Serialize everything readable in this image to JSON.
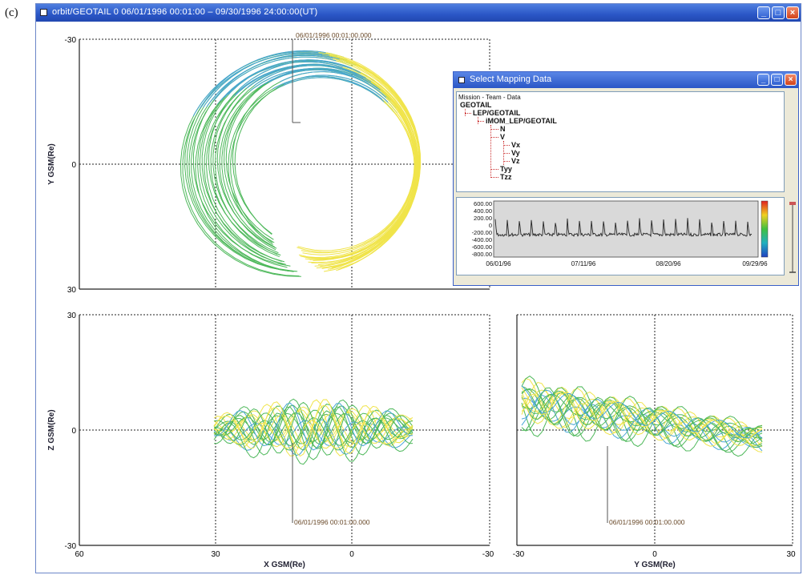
{
  "caption": "(c)",
  "window": {
    "title": "orbit/GEOTAIL 0 06/01/1996 00:01:00 – 09/30/1996 24:00:00(UT)",
    "buttons": {
      "minimize": "_",
      "maximize": "□",
      "close": "×"
    }
  },
  "plots": {
    "xy": {
      "ylabel": "Y GSM(Re)",
      "yticks": [
        "-30",
        "0",
        "30"
      ],
      "annotation": "06/01/1996 00:01:00.000"
    },
    "xz": {
      "ylabel": "Z GSM(Re)",
      "xlabel": "X GSM(Re)",
      "yticks": [
        "30",
        "0",
        "-30"
      ],
      "xticks": [
        "60",
        "30",
        "0",
        "-30"
      ],
      "annotation": "06/01/1996 00:01:00.000"
    },
    "yz": {
      "xlabel": "Y GSM(Re)",
      "xticks": [
        "-30",
        "0",
        "30"
      ],
      "annotation": "06/01/1996 00:01:00.000"
    }
  },
  "colors": {
    "trace_main": "#4db85a",
    "trace_high": "#f0e44a",
    "trace_low": "#4aa6d6",
    "trace_spike": "#e0382a",
    "window_blue": "#2a56c6"
  },
  "popup": {
    "title": "Select Mapping Data",
    "tree_header": "Mission - Team - Data",
    "tree": {
      "mission": "GEOTAIL",
      "team": "LEP/GEOTAIL",
      "dataset": "iMOM_LEP/GEOTAIL",
      "items": [
        "N",
        "V",
        "Tyy",
        "Tzz"
      ],
      "sub_items": [
        "Vx",
        "Vy",
        "Vz"
      ]
    },
    "mini_chart": {
      "yticks": [
        "600.00",
        "400.00",
        "200.00",
        "0",
        "-200.00",
        "-400.00",
        "-600.00",
        "-800.00"
      ],
      "xticks": [
        "06/01/96",
        "07/11/96",
        "08/20/96",
        "09/29/96"
      ]
    }
  }
}
